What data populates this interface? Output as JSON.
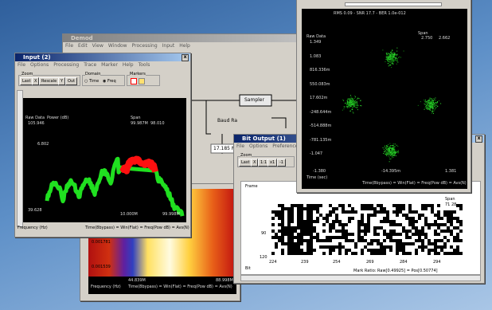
{
  "demod": {
    "title": "Demod",
    "menu": [
      "File",
      "Edit",
      "View",
      "Window",
      "Processing",
      "Input",
      "Help"
    ],
    "blocks": {
      "sampler": "Sampler",
      "baud_label": "Baud Ra",
      "baud_value": "17.185 MH"
    }
  },
  "input": {
    "title": "Input (2)",
    "menu": [
      "File",
      "Options",
      "Processing",
      "Trace",
      "Marker",
      "Help",
      "Tools"
    ],
    "groups": {
      "zoom": "Zoom",
      "domain": "Domain",
      "markers": "Markers"
    },
    "buttons": [
      "Last",
      "X",
      "Rescale",
      "Y",
      "Out"
    ],
    "radios": [
      "Time",
      "Freq"
    ],
    "plot": {
      "source": "Raw Data",
      "units": "Power (dB)",
      "y_top": "105.946",
      "y_mid": "6.802",
      "y_bottom": "39.628",
      "span_label": "Span",
      "span_values": [
        "99.987M",
        "98.010"
      ],
      "x_mid": "10.000M",
      "x_right": "99.998M",
      "x_axis": "Frequency (Hz)",
      "status": "Time(8bypass) = Win(Flat) = Freq(Pow dB) = Avs(N)"
    }
  },
  "constellation": {
    "header": "RMS 0.09 - SNR 17.7 - BER 1.0e-012",
    "source": "Raw Data",
    "y_labels": [
      "1.349",
      "1.083",
      "816.336m",
      "550.083m",
      "17.602m",
      "-248.644m",
      "-514.888m",
      "-781.135m",
      "-1.047"
    ],
    "x_labels": [
      "-1.380",
      "-14.395m",
      "1.381"
    ],
    "span_label": "Span",
    "span_values": [
      "2.750",
      "2.662"
    ],
    "x_axis": "Time (sec)",
    "status": "Time(8bypass) = Win(Flat) = Freq(Pow dB) = Avs(N)"
  },
  "spectrogram": {
    "y_labels": [
      "0.001781",
      "0.001539"
    ],
    "x_labels": [
      "44.839M",
      "88.998M"
    ],
    "x_axis": "Frequency (Hz)",
    "status": "Time(8bypass) = Win(Flat) = Freq(Pow dB) = Avs(N)"
  },
  "bit_output": {
    "title": "Bit Output (1)",
    "menu": [
      "File",
      "Options",
      "Preferences"
    ],
    "zoom": "Zoom",
    "buttons": [
      "Last",
      "X",
      "1:1",
      "x1",
      "-1"
    ],
    "frame_label": "Frame",
    "span_label": "Span",
    "span_value": "71 28",
    "y_labels": [
      "90",
      "120"
    ],
    "x_labels": [
      "224",
      "239",
      "254",
      "269",
      "284",
      "294"
    ],
    "bit_label": "Bit",
    "status": "Mark Ratio: Raw[0.49925] = Pos[0.50774]"
  }
}
